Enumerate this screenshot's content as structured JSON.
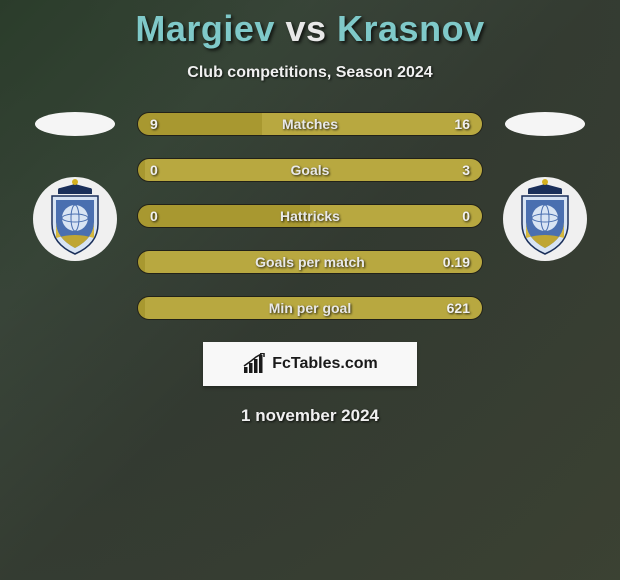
{
  "title": {
    "player1": "Margiev",
    "vs": "vs",
    "player2": "Krasnov"
  },
  "subtitle": "Club competitions, Season 2024",
  "stats": [
    {
      "name": "Matches",
      "left_val": "9",
      "right_val": "16",
      "left_pct": 36,
      "left_color": "#a89830",
      "right_color": "#b8a840"
    },
    {
      "name": "Goals",
      "left_val": "0",
      "right_val": "3",
      "left_pct": 2,
      "left_color": "#a89830",
      "right_color": "#b8a840"
    },
    {
      "name": "Hattricks",
      "left_val": "0",
      "right_val": "0",
      "left_pct": 50,
      "left_color": "#a89830",
      "right_color": "#b8a840"
    },
    {
      "name": "Goals per match",
      "left_val": "",
      "right_val": "0.19",
      "left_pct": 2,
      "left_color": "#a89830",
      "right_color": "#b8a840"
    },
    {
      "name": "Min per goal",
      "left_val": "",
      "right_val": "621",
      "left_pct": 2,
      "left_color": "#a89830",
      "right_color": "#b8a840"
    }
  ],
  "attribution": "FcTables.com",
  "date_label": "1 november 2024",
  "badge": {
    "shield_main": "#4a6fb0",
    "shield_light": "#d8e4f4",
    "crown": "#1a2f5a",
    "accent_gold": "#d4b020"
  },
  "colors": {
    "title_accent": "#7fc9c9",
    "title_main": "#e8e8e8",
    "text": "#f0f0f0",
    "fctables_bg": "#f8f8f8",
    "fctables_text": "#1a1a1a",
    "body_bg1": "#3a4a3a",
    "body_bg2": "#445544",
    "avatar_bg": "#f5f5f5"
  },
  "fontsizes": {
    "title": 36,
    "subtitle": 16,
    "bar_label": 14,
    "date": 17,
    "fctables": 16
  }
}
